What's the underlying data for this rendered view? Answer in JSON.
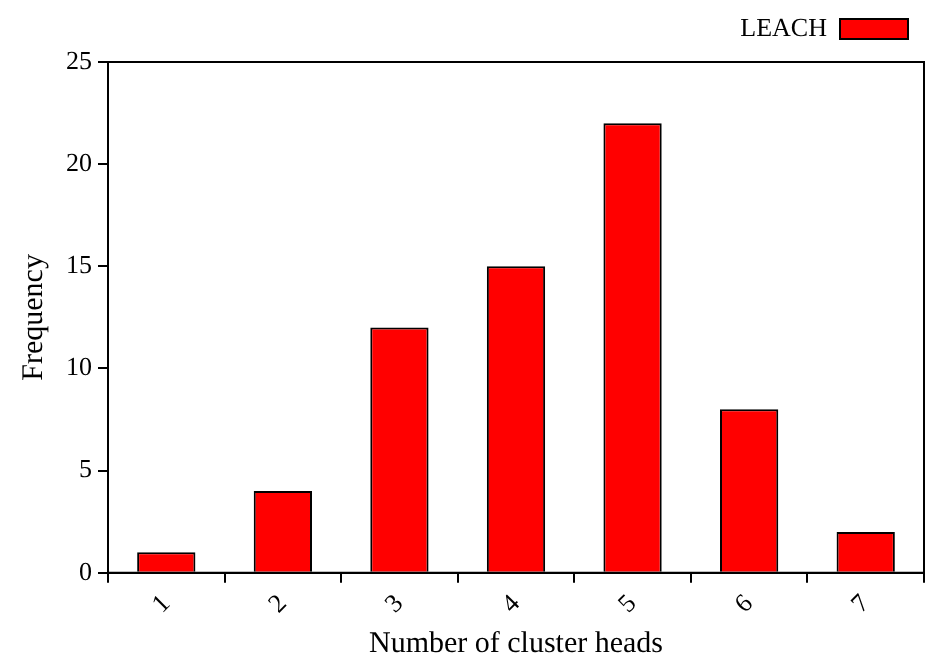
{
  "chart_data": {
    "type": "bar",
    "xlabel": "Number of cluster heads",
    "ylabel": "Frequency",
    "categories": [
      "1",
      "2",
      "3",
      "4",
      "5",
      "6",
      "7"
    ],
    "series": [
      {
        "name": "LEACH",
        "color": "#ff0000",
        "values": [
          1,
          4,
          12,
          15,
          22,
          8,
          2
        ]
      }
    ],
    "ylim": [
      0,
      25
    ],
    "yticks": [
      0,
      5,
      10,
      15,
      20,
      25
    ],
    "grid": false,
    "legend": "top right"
  }
}
